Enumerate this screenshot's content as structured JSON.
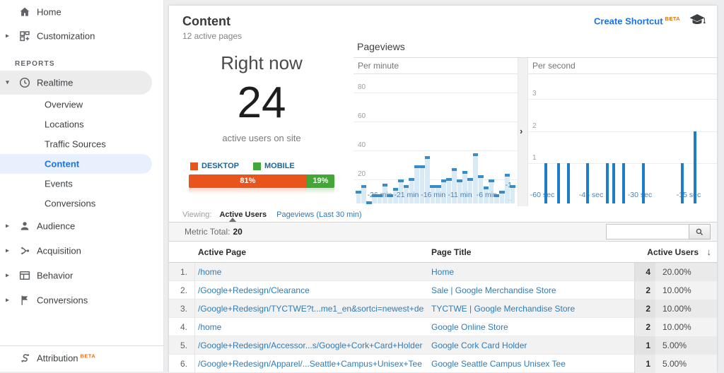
{
  "sidebar": {
    "reports_label": "REPORTS",
    "items": [
      {
        "type": "item",
        "id": "home",
        "label": "Home",
        "icon": "home-icon"
      },
      {
        "type": "item",
        "id": "customization",
        "label": "Customization",
        "icon": "customization-icon",
        "expandable": true
      },
      {
        "type": "section",
        "label": "REPORTS"
      },
      {
        "type": "item",
        "id": "realtime",
        "label": "Realtime",
        "icon": "clock-icon",
        "expanded": true,
        "selected": "gray"
      },
      {
        "type": "sub",
        "id": "overview",
        "label": "Overview"
      },
      {
        "type": "sub",
        "id": "locations",
        "label": "Locations"
      },
      {
        "type": "sub",
        "id": "traffic-sources",
        "label": "Traffic Sources"
      },
      {
        "type": "sub",
        "id": "content",
        "label": "Content",
        "selected": "blue"
      },
      {
        "type": "sub",
        "id": "events",
        "label": "Events"
      },
      {
        "type": "sub",
        "id": "conversions",
        "label": "Conversions"
      },
      {
        "type": "item",
        "id": "audience",
        "label": "Audience",
        "icon": "person-icon",
        "expandable": true,
        "tall": true
      },
      {
        "type": "item",
        "id": "acquisition",
        "label": "Acquisition",
        "icon": "acquisition-icon",
        "expandable": true,
        "tall": true
      },
      {
        "type": "item",
        "id": "behavior",
        "label": "Behavior",
        "icon": "behavior-icon",
        "expandable": true,
        "tall": true
      },
      {
        "type": "item",
        "id": "conversions-main",
        "label": "Conversions",
        "icon": "flag-icon",
        "expandable": true,
        "tall": true
      },
      {
        "type": "divider"
      },
      {
        "type": "item",
        "id": "attribution",
        "label": "Attribution",
        "icon": "attribution-icon",
        "beta": "BETA"
      }
    ]
  },
  "header": {
    "title": "Content",
    "subtitle": "12 active pages",
    "create_shortcut": "Create Shortcut",
    "beta": "BETA"
  },
  "right_now": {
    "title": "Right now",
    "count": "24",
    "caption": "active users on site",
    "legend": [
      {
        "label": "DESKTOP",
        "color": "#e8541c",
        "pct": "81%"
      },
      {
        "label": "MOBILE",
        "color": "#43a639",
        "pct": "19%"
      }
    ]
  },
  "pageviews": {
    "title": "Pageviews",
    "expand_arrow": "›"
  },
  "chart_data": [
    {
      "type": "bar",
      "title": "Pageviews",
      "subtitle": "Per minute",
      "x": [
        -30,
        -29,
        -28,
        -27,
        -26,
        -25,
        -24,
        -23,
        -22,
        -21,
        -20,
        -19,
        -18,
        -17,
        -16,
        -15,
        -14,
        -13,
        -12,
        -11,
        -10,
        -9,
        -8,
        -7,
        -6,
        -5,
        -4,
        -3,
        -2,
        -1
      ],
      "values": [
        12,
        16,
        5,
        10,
        10,
        17,
        10,
        14,
        20,
        16,
        21,
        30,
        30,
        36,
        16,
        16,
        20,
        21,
        28,
        20,
        26,
        21,
        38,
        23,
        15,
        20,
        10,
        12,
        24,
        16
      ],
      "ylim": [
        0,
        88
      ],
      "yticks": [
        20,
        40,
        60,
        80
      ],
      "xticks": [
        {
          "v": -26,
          "label": "-26 min"
        },
        {
          "v": -21,
          "label": "-21 min"
        },
        {
          "v": -16,
          "label": "-16 min"
        },
        {
          "v": -11,
          "label": "-11 min"
        },
        {
          "v": -6,
          "label": "-6 min"
        }
      ],
      "edge_label": "-1",
      "edge_dots": "..",
      "bar_color": "#3a8cc4",
      "fill_color": "#d9eaf7",
      "grid": true,
      "legend_position": "none"
    },
    {
      "type": "bar",
      "title": "Pageviews",
      "subtitle": "Per second",
      "x": [
        -59,
        -55,
        -52,
        -46,
        -40,
        -38,
        -35,
        -29,
        -17,
        -13
      ],
      "values": [
        1,
        1,
        1,
        1,
        1,
        1,
        1,
        1,
        1,
        2
      ],
      "ylim": [
        0,
        3.6
      ],
      "yticks": [
        1,
        2,
        3
      ],
      "xticks": [
        {
          "v": -60,
          "label": "-60 sec"
        },
        {
          "v": -45,
          "label": "-45 sec"
        },
        {
          "v": -30,
          "label": "-30 sec"
        },
        {
          "v": -15,
          "label": "-15 sec"
        }
      ],
      "bar_color": "#1d7ec6",
      "grid": true,
      "legend_position": "none"
    }
  ],
  "viewing": {
    "label": "Viewing:",
    "tabs": [
      {
        "label": "Active Users",
        "selected": true
      },
      {
        "label": "Pageviews (Last 30 min)",
        "selected": false
      }
    ]
  },
  "metric": {
    "label": "Metric Total:",
    "value": "20"
  },
  "search": {
    "value": "",
    "icon": "search-icon"
  },
  "table": {
    "columns": [
      "Active Page",
      "Page Title",
      "Active Users"
    ],
    "sort_icon": "↓",
    "rows": [
      {
        "idx": "1.",
        "page": "/home",
        "title": "Home",
        "users": "4",
        "pct": "20.00%"
      },
      {
        "idx": "2.",
        "page": "/Google+Redesign/Clearance",
        "title": "Sale | Google Merchandise Store",
        "users": "2",
        "pct": "10.00%"
      },
      {
        "idx": "3.",
        "page": "/Google+Redesign/TYCTWE?t...me1_en&sortci=newest+desc",
        "title": "TYCTWE | Google Merchandise Store",
        "users": "2",
        "pct": "10.00%"
      },
      {
        "idx": "4.",
        "page": "/home",
        "title": "Google Online Store",
        "users": "2",
        "pct": "10.00%"
      },
      {
        "idx": "5.",
        "page": "/Google+Redesign/Accessor...s/Google+Cork+Card+Holder",
        "title": "Google Cork Card Holder",
        "users": "1",
        "pct": "5.00%"
      },
      {
        "idx": "6.",
        "page": "/Google+Redesign/Apparel/...Seattle+Campus+Unisex+Tee",
        "title": "Google Seattle Campus Unisex Tee",
        "users": "1",
        "pct": "5.00%"
      }
    ]
  }
}
